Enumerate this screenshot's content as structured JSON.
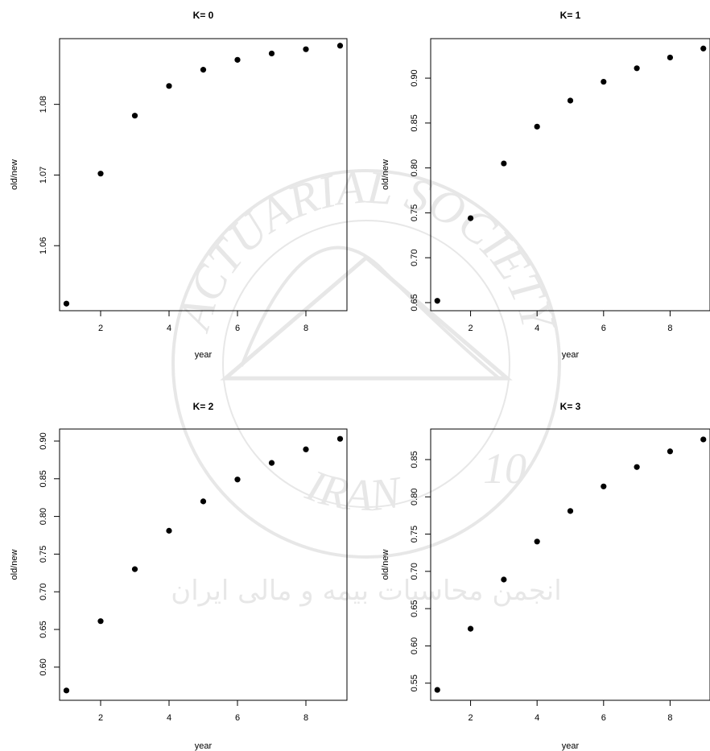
{
  "chart_data": [
    {
      "type": "scatter",
      "title": "K= 0",
      "xlabel": "year",
      "ylabel": "old/new",
      "x": [
        1,
        2,
        3,
        4,
        5,
        6,
        7,
        8,
        9
      ],
      "y": [
        1.0518,
        1.0702,
        1.0784,
        1.0826,
        1.0849,
        1.0863,
        1.0872,
        1.0878,
        1.0883
      ],
      "xlim": [
        0.8,
        9.2
      ],
      "ylim": [
        1.0508,
        1.0893
      ],
      "xticks": [
        2,
        4,
        6,
        8
      ],
      "xtick_labels": [
        "2",
        "4",
        "6",
        "8"
      ],
      "yticks": [
        1.06,
        1.07,
        1.08
      ],
      "ytick_labels": [
        "1.06",
        "1.07",
        "1.08"
      ],
      "grid": false
    },
    {
      "type": "scatter",
      "title": "K= 1",
      "xlabel": "year",
      "ylabel": "old/new",
      "x": [
        1,
        2,
        3,
        4,
        5,
        6,
        7,
        8,
        9
      ],
      "y": [
        0.652,
        0.744,
        0.805,
        0.846,
        0.875,
        0.896,
        0.911,
        0.923,
        0.933
      ],
      "xlim": [
        0.8,
        9.2
      ],
      "ylim": [
        0.641,
        0.944
      ],
      "xticks": [
        2,
        4,
        6,
        8
      ],
      "xtick_labels": [
        "2",
        "4",
        "6",
        "8"
      ],
      "yticks": [
        0.65,
        0.7,
        0.75,
        0.8,
        0.85,
        0.9
      ],
      "ytick_labels": [
        "0.65",
        "0.70",
        "0.75",
        "0.80",
        "0.85",
        "0.90"
      ],
      "grid": false
    },
    {
      "type": "scatter",
      "title": "K= 2",
      "xlabel": "year",
      "ylabel": "old/new",
      "x": [
        1,
        2,
        3,
        4,
        5,
        6,
        7,
        8,
        9
      ],
      "y": [
        0.569,
        0.661,
        0.73,
        0.781,
        0.82,
        0.849,
        0.871,
        0.889,
        0.903
      ],
      "xlim": [
        0.8,
        9.2
      ],
      "ylim": [
        0.556,
        0.916
      ],
      "xticks": [
        2,
        4,
        6,
        8
      ],
      "xtick_labels": [
        "2",
        "4",
        "6",
        "8"
      ],
      "yticks": [
        0.6,
        0.65,
        0.7,
        0.75,
        0.8,
        0.85,
        0.9
      ],
      "ytick_labels": [
        "0.60",
        "0.65",
        "0.70",
        "0.75",
        "0.80",
        "0.85",
        "0.90"
      ],
      "grid": false
    },
    {
      "type": "scatter",
      "title": "K= 3",
      "xlabel": "year",
      "ylabel": "old/new",
      "x": [
        1,
        2,
        3,
        4,
        5,
        6,
        7,
        8,
        9
      ],
      "y": [
        0.541,
        0.623,
        0.689,
        0.74,
        0.781,
        0.814,
        0.84,
        0.861,
        0.877
      ],
      "xlim": [
        0.8,
        9.2
      ],
      "ylim": [
        0.527,
        0.891
      ],
      "xticks": [
        2,
        4,
        6,
        8
      ],
      "xtick_labels": [
        "2",
        "4",
        "6",
        "8"
      ],
      "yticks": [
        0.55,
        0.6,
        0.65,
        0.7,
        0.75,
        0.8,
        0.85
      ],
      "ytick_labels": [
        "0.55",
        "0.60",
        "0.65",
        "0.70",
        "0.75",
        "0.80",
        "0.85"
      ],
      "grid": false
    }
  ],
  "watermark": {
    "arc_text": "ACTUARIAL SOCIETY",
    "bottom_text": "IRAN",
    "numeral": "10",
    "persian_text": "انجمن محاسبات بیمه و مالی ایران",
    "color": "#bdbdbd"
  }
}
